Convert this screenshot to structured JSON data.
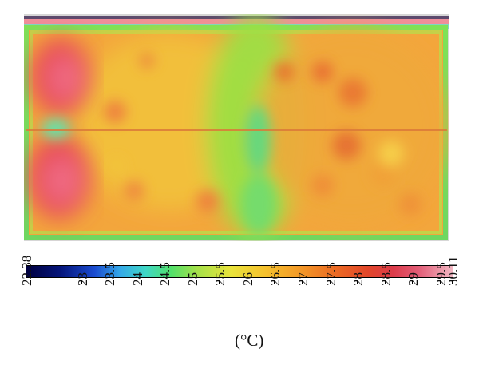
{
  "image": {
    "description": "thermal-infrared-image"
  },
  "colorbar": {
    "min_label": "22.38",
    "max_label": "30.11",
    "ticks": [
      "22.38",
      "23",
      "23.5",
      "24",
      "24.5",
      "25",
      "25.5",
      "26",
      "26.5",
      "27",
      "27.5",
      "28",
      "28.5",
      "29",
      "29.5",
      "30.11"
    ],
    "unit": "(°C)"
  }
}
